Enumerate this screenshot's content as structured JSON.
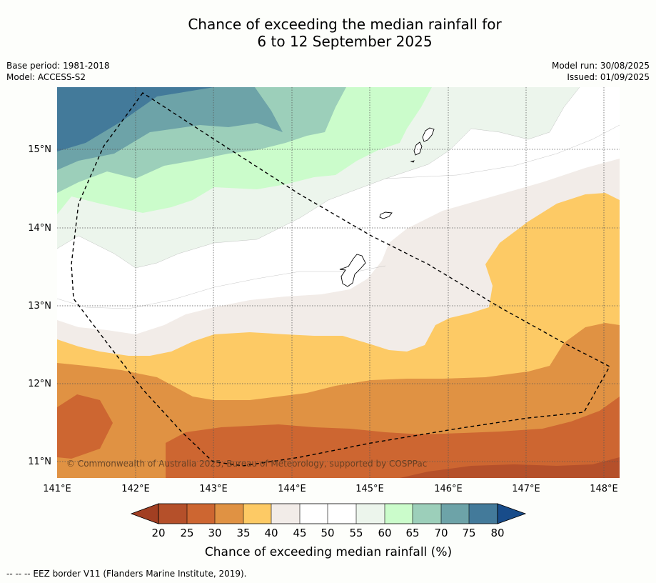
{
  "header": {
    "title_line1": "Chance of exceeding the median rainfall for",
    "title_line2": "6 to 12 September 2025",
    "base_period": "Base period: 1981-2018",
    "model": "Model: ACCESS-S2",
    "model_run": "Model run: 30/08/2025",
    "issued": "Issued: 01/09/2025"
  },
  "map": {
    "lon_ticks": [
      "141°E",
      "142°E",
      "143°E",
      "144°E",
      "145°E",
      "146°E",
      "147°E",
      "148°E"
    ],
    "lat_ticks": [
      "15°N",
      "14°N",
      "13°N",
      "12°N",
      "11°N"
    ],
    "copyright": "© Commonwealth of Australia 2025, Bureau of Meteorology, supported by COSPPac"
  },
  "colorbar": {
    "title": "Chance of exceeding median rainfall (%)",
    "ticks": [
      "20",
      "25",
      "30",
      "35",
      "40",
      "45",
      "50",
      "55",
      "60",
      "65",
      "70",
      "75",
      "80"
    ],
    "colors": {
      "under": "#a23f22",
      "c20": "#b5502a",
      "c25": "#cd6631",
      "c30": "#e09243",
      "c35": "#fdca65",
      "c40": "#f2ece8",
      "c45": "#ffffff",
      "c50": "#ffffff",
      "c55": "#ecf5ec",
      "c60": "#cbfccb",
      "c65": "#9ccfba",
      "c70": "#6da3a8",
      "c75": "#437a9a",
      "over": "#184c8a"
    }
  },
  "footer": {
    "legend_text": "--  --  -- EEZ border V11 (Flanders Marine Institute, 2019)."
  }
}
